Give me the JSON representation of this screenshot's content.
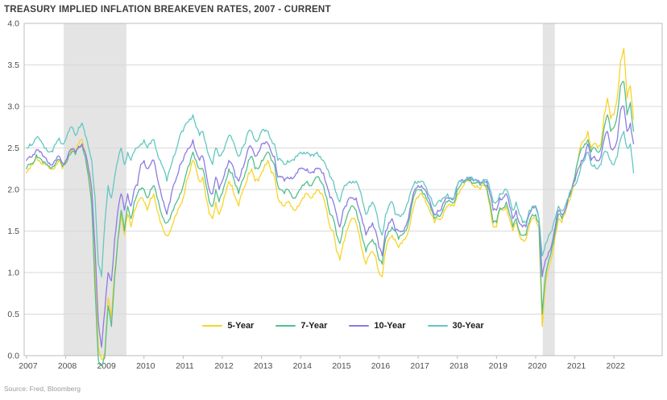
{
  "title": "TREASURY IMPLIED INFLATION BREAKEVEN RATES, 2007 - CURRENT",
  "source_note": "Source: Fred, Bloomberg",
  "colors": {
    "five_year": "#F8D32A",
    "seven_year": "#54BE8E",
    "ten_year": "#8B7CE2",
    "thirty_year": "#64C7C1",
    "grid": "#D9D9D9",
    "frame": "#BDBDBD",
    "recession_band": "#E4E4E4",
    "title_text": "#3C3C3C",
    "tick_text": "#4D4D4D",
    "source_text": "#9B9BA1"
  },
  "chart_data": {
    "type": "line",
    "title": "TREASURY IMPLIED INFLATION BREAKEVEN RATES, 2007 - CURRENT",
    "xlabel": "",
    "ylabel": "",
    "ylim": [
      0.0,
      4.0
    ],
    "y_tick_labels": [
      "0.0",
      "0.5",
      "1.0",
      "1.5",
      "2.0",
      "2.5",
      "3.0",
      "3.5",
      "4.0"
    ],
    "x_tick_labels": [
      "2007",
      "2008",
      "2009",
      "2010",
      "2011",
      "2012",
      "2013",
      "2014",
      "2015",
      "2016",
      "2017",
      "2018",
      "2019",
      "2020",
      "2021",
      "2022"
    ],
    "xlim_years": [
      2006.94,
      2023.23
    ],
    "grid": true,
    "legend_position": "bottom-center-inside",
    "recession_bands_years": [
      [
        2007.95,
        2009.55
      ],
      [
        2020.18,
        2020.49
      ]
    ],
    "legend": [
      {
        "label": "5-Year",
        "color_key": "five_year"
      },
      {
        "label": "7-Year",
        "color_key": "seven_year"
      },
      {
        "label": "10-Year",
        "color_key": "ten_year"
      },
      {
        "label": "30-Year",
        "color_key": "thirty_year"
      }
    ],
    "x_start_year": 2007,
    "x_step_months": 1,
    "series": [
      {
        "name": "5-Year",
        "color_key": "five_year",
        "values_by_year": {
          "2007": [
            2.2,
            2.25,
            2.3,
            2.4,
            2.35,
            2.3,
            2.3,
            2.25,
            2.25,
            2.3,
            2.35,
            2.25
          ],
          "2008": [
            2.3,
            2.45,
            2.5,
            2.45,
            2.55,
            2.6,
            2.45,
            2.2,
            1.9,
            1.0,
            0.1,
            -0.05
          ],
          "2009": [
            0.05,
            0.7,
            0.45,
            1.0,
            1.4,
            1.7,
            1.45,
            1.7,
            1.55,
            1.75,
            1.85,
            1.9
          ],
          "2010": [
            1.85,
            1.75,
            1.9,
            1.95,
            1.75,
            1.6,
            1.5,
            1.45,
            1.5,
            1.6,
            1.7,
            1.8
          ],
          "2011": [
            1.9,
            2.1,
            2.2,
            2.35,
            2.25,
            2.1,
            2.15,
            1.9,
            1.7,
            1.65,
            1.85,
            1.7
          ],
          "2012": [
            1.8,
            1.95,
            2.1,
            2.05,
            1.9,
            1.8,
            1.95,
            2.05,
            2.2,
            2.25,
            2.1,
            2.1
          ],
          "2013": [
            2.2,
            2.3,
            2.35,
            2.2,
            2.15,
            1.9,
            1.85,
            1.8,
            1.85,
            1.8,
            1.75,
            1.8
          ],
          "2014": [
            1.85,
            1.9,
            1.95,
            1.9,
            1.95,
            2.0,
            1.95,
            1.9,
            1.75,
            1.55,
            1.5,
            1.25
          ],
          "2015": [
            1.15,
            1.35,
            1.5,
            1.6,
            1.65,
            1.6,
            1.45,
            1.25,
            1.1,
            1.2,
            1.25,
            1.2
          ],
          "2016": [
            1.0,
            0.95,
            1.25,
            1.4,
            1.45,
            1.4,
            1.3,
            1.35,
            1.4,
            1.5,
            1.7,
            1.85
          ],
          "2017": [
            1.9,
            1.95,
            1.9,
            1.8,
            1.7,
            1.6,
            1.65,
            1.65,
            1.75,
            1.8,
            1.8,
            1.8
          ],
          "2018": [
            1.95,
            2.0,
            2.05,
            2.1,
            2.1,
            2.05,
            2.05,
            2.0,
            2.05,
            2.0,
            1.8,
            1.55
          ],
          "2019": [
            1.55,
            1.75,
            1.75,
            1.8,
            1.65,
            1.5,
            1.6,
            1.45,
            1.4,
            1.4,
            1.55,
            1.65
          ],
          "2020": [
            1.65,
            1.55,
            0.35,
            0.85,
            1.05,
            1.2,
            1.45,
            1.65,
            1.6,
            1.7,
            1.85,
            1.95
          ],
          "2021": [
            2.15,
            2.35,
            2.55,
            2.6,
            2.7,
            2.5,
            2.55,
            2.5,
            2.55,
            2.9,
            3.1,
            2.85
          ],
          "2022": [
            2.9,
            3.1,
            3.55,
            3.7,
            3.1,
            3.25,
            2.85
          ]
        }
      },
      {
        "name": "7-Year",
        "color_key": "seven_year",
        "values_by_year": {
          "2007": [
            2.25,
            2.3,
            2.32,
            2.42,
            2.38,
            2.32,
            2.3,
            2.28,
            2.28,
            2.32,
            2.36,
            2.28
          ],
          "2008": [
            2.32,
            2.42,
            2.46,
            2.42,
            2.5,
            2.55,
            2.4,
            2.15,
            1.8,
            0.8,
            -0.05,
            -0.12
          ],
          "2009": [
            0.0,
            0.6,
            0.35,
            0.95,
            1.4,
            1.75,
            1.5,
            1.8,
            1.65,
            1.85,
            1.95,
            2.0
          ],
          "2010": [
            2.0,
            1.9,
            2.0,
            2.05,
            1.9,
            1.75,
            1.65,
            1.6,
            1.65,
            1.75,
            1.85,
            1.95
          ],
          "2011": [
            2.05,
            2.2,
            2.3,
            2.45,
            2.35,
            2.25,
            2.25,
            2.05,
            1.85,
            1.8,
            2.0,
            1.85
          ],
          "2012": [
            1.95,
            2.1,
            2.25,
            2.2,
            2.05,
            1.95,
            2.1,
            2.2,
            2.35,
            2.4,
            2.25,
            2.25
          ],
          "2013": [
            2.35,
            2.4,
            2.45,
            2.35,
            2.3,
            2.05,
            2.0,
            1.95,
            2.0,
            1.95,
            1.9,
            1.95
          ],
          "2014": [
            2.0,
            2.05,
            2.1,
            2.05,
            2.1,
            2.15,
            2.1,
            2.05,
            1.9,
            1.7,
            1.65,
            1.45
          ],
          "2015": [
            1.35,
            1.55,
            1.65,
            1.75,
            1.8,
            1.75,
            1.6,
            1.4,
            1.25,
            1.35,
            1.4,
            1.35
          ],
          "2016": [
            1.15,
            1.1,
            1.4,
            1.5,
            1.55,
            1.5,
            1.4,
            1.45,
            1.5,
            1.6,
            1.8,
            1.95
          ],
          "2017": [
            2.0,
            2.0,
            1.95,
            1.85,
            1.75,
            1.65,
            1.7,
            1.7,
            1.8,
            1.85,
            1.85,
            1.85
          ],
          "2018": [
            2.0,
            2.05,
            2.08,
            2.12,
            2.12,
            2.08,
            2.08,
            2.05,
            2.08,
            2.05,
            1.85,
            1.6
          ],
          "2019": [
            1.6,
            1.78,
            1.78,
            1.85,
            1.7,
            1.55,
            1.65,
            1.5,
            1.45,
            1.45,
            1.6,
            1.7
          ],
          "2020": [
            1.7,
            1.6,
            0.5,
            0.95,
            1.15,
            1.3,
            1.5,
            1.7,
            1.65,
            1.75,
            1.9,
            2.0
          ],
          "2021": [
            2.15,
            2.35,
            2.5,
            2.55,
            2.6,
            2.45,
            2.5,
            2.45,
            2.5,
            2.75,
            2.9,
            2.7
          ],
          "2022": [
            2.75,
            2.9,
            3.25,
            3.3,
            2.9,
            3.05,
            2.7
          ]
        }
      },
      {
        "name": "10-Year",
        "color_key": "ten_year",
        "values_by_year": {
          "2007": [
            2.35,
            2.4,
            2.42,
            2.48,
            2.45,
            2.4,
            2.38,
            2.32,
            2.3,
            2.35,
            2.4,
            2.32
          ],
          "2008": [
            2.35,
            2.45,
            2.48,
            2.45,
            2.52,
            2.55,
            2.45,
            2.25,
            2.0,
            1.3,
            0.4,
            0.1
          ],
          "2009": [
            0.55,
            1.0,
            0.9,
            1.4,
            1.75,
            1.95,
            1.75,
            1.95,
            1.8,
            2.0,
            2.05,
            2.3
          ],
          "2010": [
            2.35,
            2.25,
            2.3,
            2.35,
            2.15,
            2.0,
            1.85,
            1.7,
            1.85,
            2.05,
            2.15,
            2.3
          ],
          "2011": [
            2.35,
            2.45,
            2.5,
            2.6,
            2.45,
            2.35,
            2.4,
            2.2,
            2.0,
            1.95,
            2.15,
            2.0
          ],
          "2012": [
            2.1,
            2.25,
            2.35,
            2.3,
            2.15,
            2.1,
            2.25,
            2.35,
            2.5,
            2.5,
            2.4,
            2.45
          ],
          "2013": [
            2.55,
            2.55,
            2.55,
            2.45,
            2.4,
            2.15,
            2.15,
            2.1,
            2.15,
            2.15,
            2.15,
            2.2
          ],
          "2014": [
            2.25,
            2.25,
            2.25,
            2.2,
            2.2,
            2.25,
            2.25,
            2.2,
            2.05,
            1.9,
            1.85,
            1.7
          ],
          "2015": [
            1.55,
            1.75,
            1.8,
            1.9,
            1.9,
            1.9,
            1.75,
            1.6,
            1.45,
            1.55,
            1.6,
            1.5
          ],
          "2016": [
            1.3,
            1.2,
            1.5,
            1.6,
            1.65,
            1.5,
            1.5,
            1.5,
            1.55,
            1.65,
            1.85,
            2.0
          ],
          "2017": [
            2.05,
            2.05,
            2.0,
            1.9,
            1.8,
            1.7,
            1.75,
            1.75,
            1.85,
            1.9,
            1.9,
            1.9
          ],
          "2018": [
            2.05,
            2.1,
            2.1,
            2.15,
            2.15,
            2.1,
            2.1,
            2.08,
            2.12,
            2.1,
            1.95,
            1.75
          ],
          "2019": [
            1.75,
            1.9,
            1.9,
            1.95,
            1.8,
            1.65,
            1.75,
            1.6,
            1.55,
            1.55,
            1.7,
            1.8
          ],
          "2020": [
            1.8,
            1.65,
            0.95,
            1.15,
            1.25,
            1.35,
            1.55,
            1.75,
            1.7,
            1.75,
            1.9,
            2.0
          ],
          "2021": [
            2.1,
            2.25,
            2.35,
            2.4,
            2.55,
            2.35,
            2.4,
            2.35,
            2.4,
            2.6,
            2.7,
            2.5
          ],
          "2022": [
            2.5,
            2.6,
            2.95,
            3.0,
            2.7,
            2.8,
            2.55
          ]
        }
      },
      {
        "name": "30-Year",
        "color_key": "thirty_year",
        "values_by_year": {
          "2007": [
            2.5,
            2.55,
            2.55,
            2.62,
            2.6,
            2.55,
            2.5,
            2.45,
            2.45,
            2.55,
            2.62,
            2.55
          ],
          "2008": [
            2.6,
            2.7,
            2.75,
            2.65,
            2.75,
            2.8,
            2.65,
            2.5,
            2.35,
            1.9,
            1.1,
            0.95
          ],
          "2009": [
            1.6,
            2.05,
            1.9,
            2.15,
            2.35,
            2.5,
            2.3,
            2.45,
            2.35,
            2.45,
            2.5,
            2.55
          ],
          "2010": [
            2.6,
            2.5,
            2.55,
            2.6,
            2.45,
            2.35,
            2.25,
            2.1,
            2.25,
            2.4,
            2.5,
            2.65
          ],
          "2011": [
            2.7,
            2.8,
            2.85,
            2.9,
            2.75,
            2.65,
            2.7,
            2.55,
            2.4,
            2.3,
            2.5,
            2.4
          ],
          "2012": [
            2.45,
            2.55,
            2.65,
            2.6,
            2.5,
            2.4,
            2.5,
            2.55,
            2.7,
            2.7,
            2.6,
            2.6
          ],
          "2013": [
            2.7,
            2.7,
            2.7,
            2.6,
            2.55,
            2.35,
            2.35,
            2.3,
            2.35,
            2.35,
            2.35,
            2.4
          ],
          "2014": [
            2.45,
            2.45,
            2.45,
            2.4,
            2.4,
            2.45,
            2.4,
            2.35,
            2.25,
            2.15,
            2.1,
            1.95
          ],
          "2015": [
            1.85,
            2.0,
            2.05,
            2.1,
            2.1,
            2.1,
            2.0,
            1.85,
            1.7,
            1.8,
            1.85,
            1.75
          ],
          "2016": [
            1.55,
            1.45,
            1.7,
            1.8,
            1.85,
            1.7,
            1.7,
            1.7,
            1.75,
            1.85,
            2.0,
            2.1
          ],
          "2017": [
            2.1,
            2.1,
            2.05,
            1.95,
            1.9,
            1.8,
            1.85,
            1.85,
            1.9,
            1.95,
            1.9,
            1.9
          ],
          "2018": [
            2.05,
            2.1,
            2.1,
            2.15,
            2.15,
            2.1,
            2.1,
            2.08,
            2.12,
            2.12,
            2.0,
            1.85
          ],
          "2019": [
            1.85,
            1.95,
            1.95,
            2.0,
            1.9,
            1.75,
            1.85,
            1.7,
            1.6,
            1.6,
            1.75,
            1.8
          ],
          "2020": [
            1.8,
            1.65,
            1.2,
            1.35,
            1.45,
            1.5,
            1.65,
            1.8,
            1.75,
            1.8,
            1.9,
            2.0
          ],
          "2021": [
            2.05,
            2.15,
            2.3,
            2.35,
            2.45,
            2.3,
            2.3,
            2.25,
            2.3,
            2.45,
            2.45,
            2.35
          ],
          "2022": [
            2.3,
            2.4,
            2.6,
            2.7,
            2.5,
            2.55,
            2.2
          ]
        }
      }
    ]
  }
}
